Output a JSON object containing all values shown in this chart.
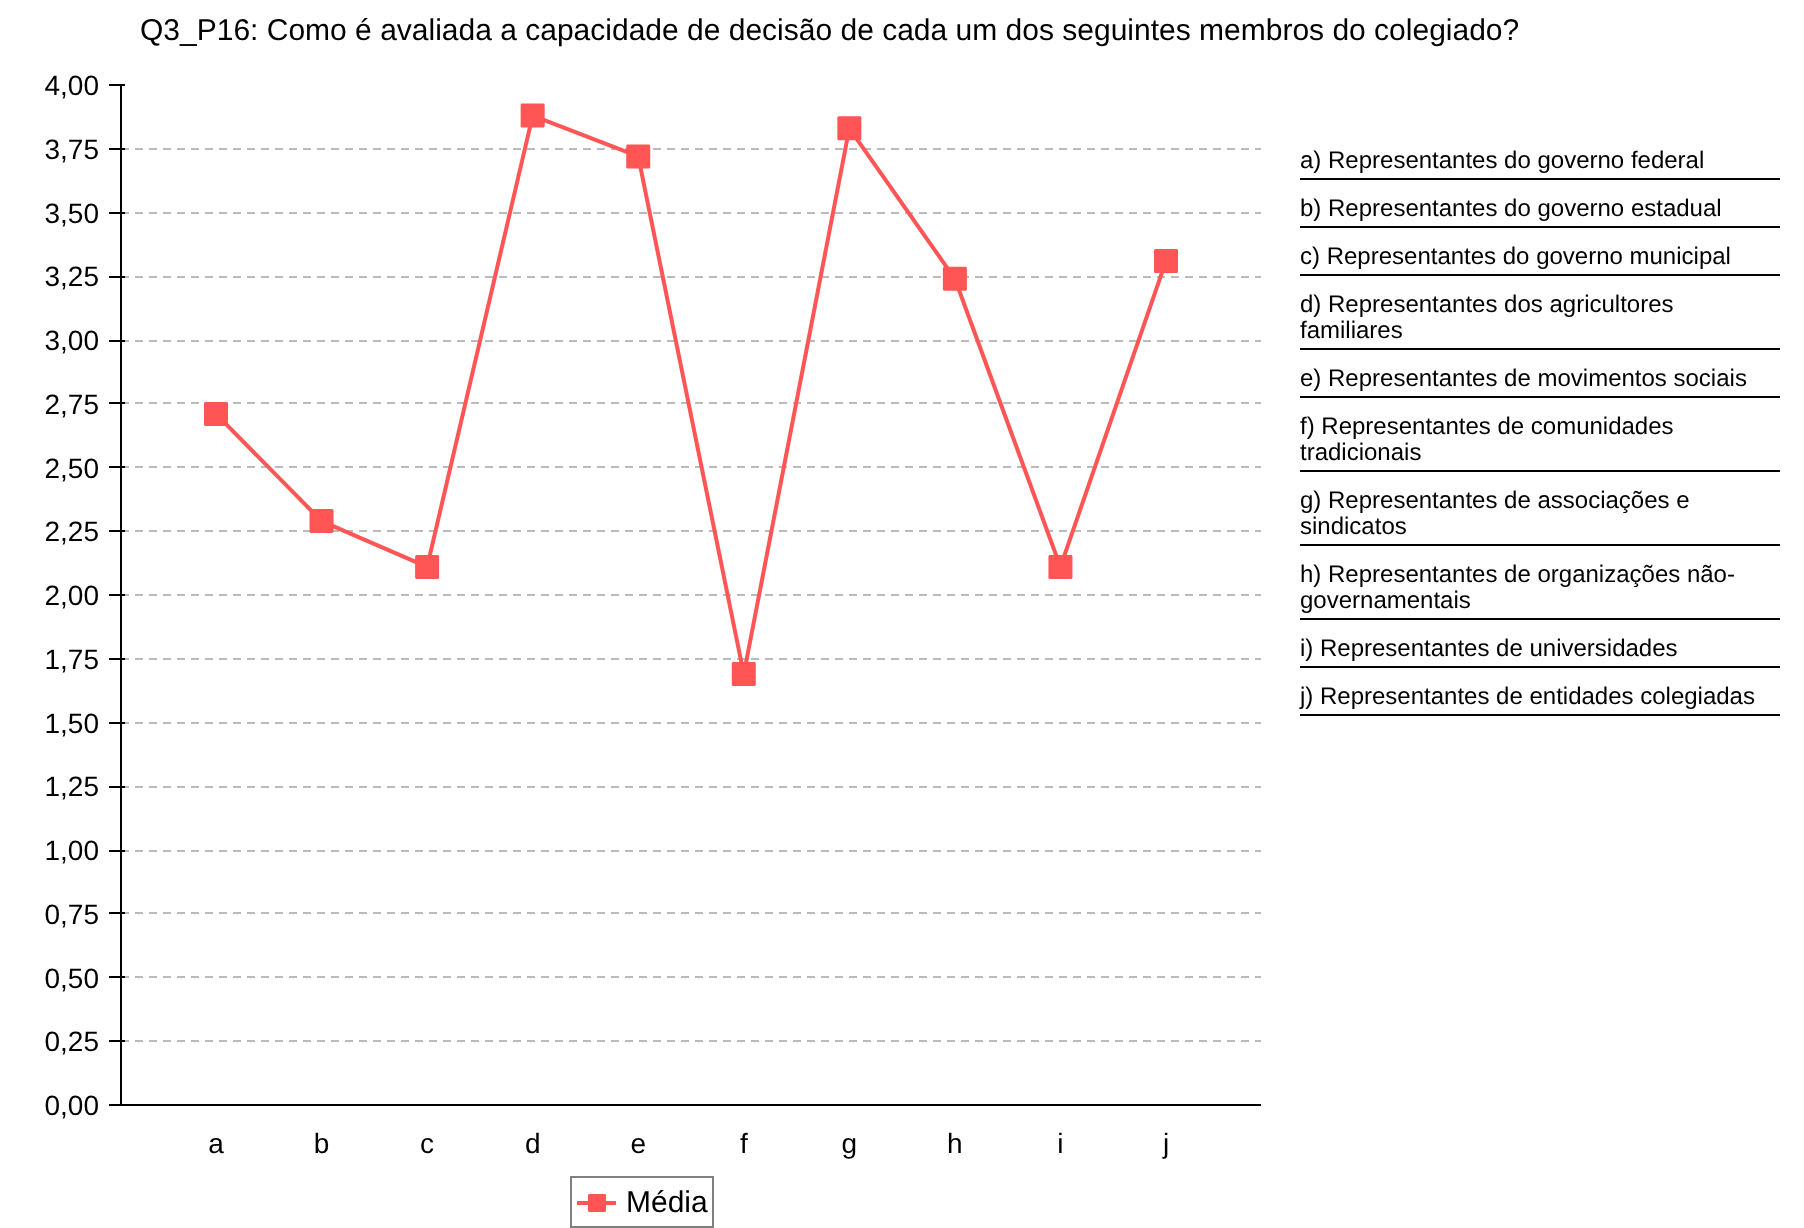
{
  "chart_data": {
    "type": "line",
    "title": "Q3_P16: Como é avaliada a capacidade de decisão de cada um dos seguintes membros do colegiado?",
    "categories": [
      "a",
      "b",
      "c",
      "d",
      "e",
      "f",
      "g",
      "h",
      "i",
      "j"
    ],
    "series": [
      {
        "name": "Média",
        "color": "#ff5555",
        "values": [
          2.71,
          2.29,
          2.11,
          3.88,
          3.72,
          1.69,
          3.83,
          3.24,
          2.11,
          3.31
        ]
      }
    ],
    "ylim": [
      0,
      4
    ],
    "yticks": [
      {
        "value": 0,
        "label": "0,00"
      },
      {
        "value": 0.25,
        "label": "0,25"
      },
      {
        "value": 0.5,
        "label": "0,50"
      },
      {
        "value": 0.75,
        "label": "0,75"
      },
      {
        "value": 1,
        "label": "1,00"
      },
      {
        "value": 1.25,
        "label": "1,25"
      },
      {
        "value": 1.5,
        "label": "1,50"
      },
      {
        "value": 1.75,
        "label": "1,75"
      },
      {
        "value": 2,
        "label": "2,00"
      },
      {
        "value": 2.25,
        "label": "2,25"
      },
      {
        "value": 2.5,
        "label": "2,50"
      },
      {
        "value": 2.75,
        "label": "2,75"
      },
      {
        "value": 3,
        "label": "3,00"
      },
      {
        "value": 3.25,
        "label": "3,25"
      },
      {
        "value": 3.5,
        "label": "3,50"
      },
      {
        "value": 3.75,
        "label": "3,75"
      },
      {
        "value": 4,
        "label": "4,00"
      }
    ],
    "grid": "y",
    "legend": "bottom",
    "marker": "square",
    "line_style": "solid",
    "annotations": [
      "a) Representantes do governo federal",
      "b) Representantes do governo estadual",
      "c) Representantes do governo municipal",
      "d) Representantes dos agricultores familiares",
      "e) Representantes de movimentos sociais",
      "f) Representantes de comunidades tradicionais",
      "g) Representantes de associações e sindicatos",
      "h) Representantes de organizações não-governamentais",
      "i) Representantes de universidades",
      "j) Representantes de entidades colegiadas"
    ]
  }
}
